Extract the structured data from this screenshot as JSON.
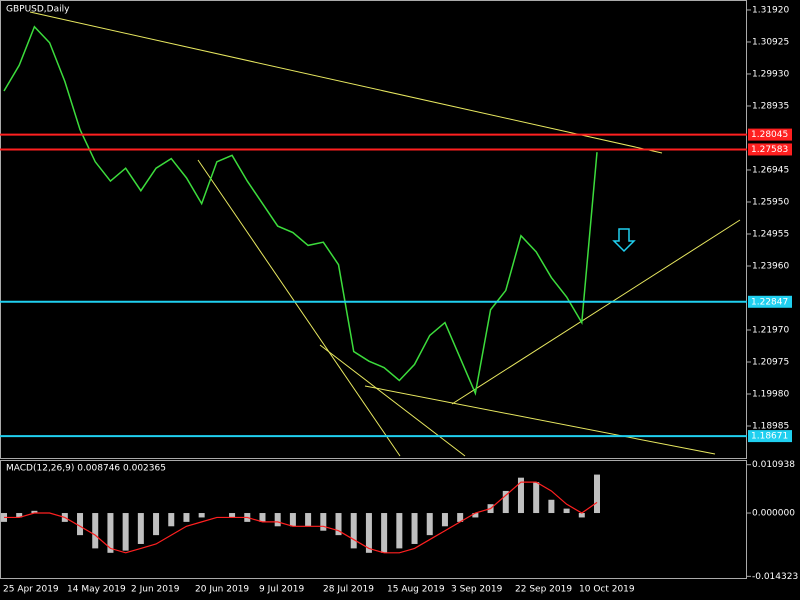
{
  "chart_data": [
    {
      "type": "line",
      "title": "GBPUSD,Daily",
      "color": "#3cdc3c",
      "values": [
        1.294,
        1.302,
        1.314,
        1.309,
        1.297,
        1.282,
        1.272,
        1.266,
        1.27,
        1.263,
        1.27,
        1.273,
        1.267,
        1.259,
        1.272,
        1.274,
        1.266,
        1.259,
        1.252,
        1.25,
        1.246,
        1.247,
        1.24,
        1.213,
        1.21,
        1.208,
        1.204,
        1.209,
        1.218,
        1.222,
        1.211,
        1.2,
        1.226,
        1.232,
        1.249,
        1.244,
        1.236,
        1.23,
        1.222,
        1.275
      ],
      "x_labels": [
        "25 Apr 2019",
        "14 May 2019",
        "2 Jun 2019",
        "20 Jun 2019",
        "9 Jul 2019",
        "28 Jul 2019",
        "15 Aug 2019",
        "3 Sep 2019",
        "22 Sep 2019",
        "10 Oct 2019"
      ],
      "ylim": [
        1.1799,
        1.3223
      ],
      "yticks": [
        {
          "value": 1.3192,
          "label": "1.31920"
        },
        {
          "value": 1.30925,
          "label": "1.30925"
        },
        {
          "value": 1.2993,
          "label": "1.29930"
        },
        {
          "value": 1.28935,
          "label": "1.28935"
        },
        {
          "value": 1.26945,
          "label": "1.26945"
        },
        {
          "value": 1.2595,
          "label": "1.25950"
        },
        {
          "value": 1.24955,
          "label": "1.24955"
        },
        {
          "value": 1.2396,
          "label": "1.23960"
        },
        {
          "value": 1.2197,
          "label": "1.21970"
        },
        {
          "value": 1.20975,
          "label": "1.20975"
        },
        {
          "value": 1.1998,
          "label": "1.19980"
        },
        {
          "value": 1.18985,
          "label": "1.18985"
        }
      ],
      "levels": [
        {
          "value": 1.28045,
          "color": "#ff2020"
        },
        {
          "value": 1.27583,
          "color": "#ff2020"
        },
        {
          "value": 1.22847,
          "color": "#20d0f0"
        },
        {
          "value": 1.18671,
          "color": "#20d0f0"
        }
      ]
    },
    {
      "type": "macd",
      "title": "MACD(12,26,9) 0.008746 0.002365",
      "series": [
        {
          "color": "#c0c0c0",
          "values": [
            -0.002,
            -0.001,
            0.0005,
            0.0,
            -0.002,
            -0.005,
            -0.008,
            -0.009,
            -0.0085,
            -0.007,
            -0.005,
            -0.003,
            -0.002,
            -0.001,
            0.0,
            -0.001,
            -0.002,
            -0.002,
            -0.003,
            -0.003,
            -0.003,
            -0.004,
            -0.005,
            -0.008,
            -0.009,
            -0.009,
            -0.008,
            -0.007,
            -0.005,
            -0.003,
            -0.002,
            -0.001,
            0.002,
            0.005,
            0.008,
            0.007,
            0.003,
            0.001,
            -0.001,
            0.0087
          ]
        },
        {
          "color": "#ff2020",
          "values": [
            -0.001,
            -0.001,
            0.0,
            0.0,
            -0.001,
            -0.003,
            -0.005,
            -0.008,
            -0.009,
            -0.008,
            -0.007,
            -0.005,
            -0.003,
            -0.002,
            -0.001,
            -0.001,
            -0.001,
            -0.002,
            -0.002,
            -0.003,
            -0.003,
            -0.003,
            -0.004,
            -0.006,
            -0.008,
            -0.009,
            -0.009,
            -0.008,
            -0.006,
            -0.004,
            -0.002,
            0.0,
            0.001,
            0.004,
            0.007,
            0.007,
            0.005,
            0.002,
            0.0,
            0.0024
          ]
        }
      ],
      "ylim": [
        -0.0147,
        0.012
      ],
      "yticks": [
        0.010938,
        {
          "value": 0,
          "label": "0.000000"
        },
        -0.014323
      ]
    }
  ]
}
